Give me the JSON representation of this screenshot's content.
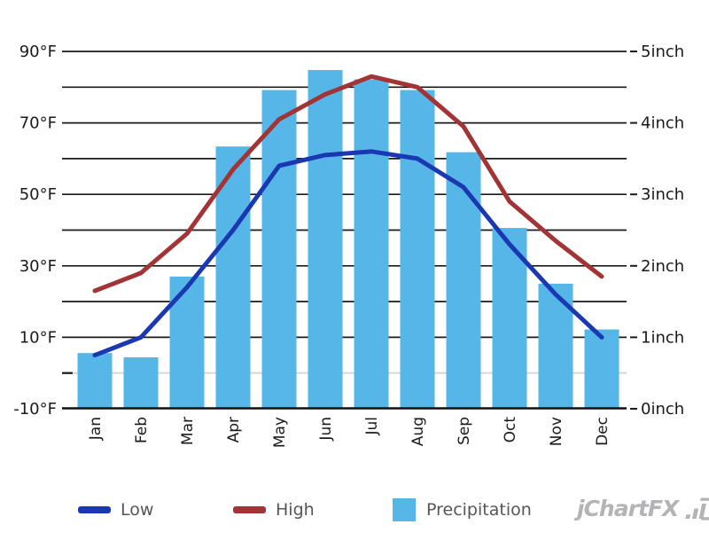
{
  "legend": {
    "low": "Low",
    "high": "High",
    "precipitation": "Precipitation"
  },
  "logo": {
    "text": "jChartFX"
  },
  "chart_data": {
    "type": "combo",
    "categories": [
      "Jan",
      "Feb",
      "Mar",
      "Apr",
      "May",
      "Jun",
      "Jul",
      "Aug",
      "Sep",
      "Oct",
      "Nov",
      "Dec"
    ],
    "series": [
      {
        "name": "Low",
        "type": "line",
        "unit": "°F",
        "color": "#1a38b2",
        "values": [
          5,
          10,
          24,
          40,
          58,
          61,
          62,
          60,
          52,
          36,
          22,
          10
        ]
      },
      {
        "name": "High",
        "type": "line",
        "unit": "°F",
        "color": "#a23435",
        "values": [
          23,
          28,
          39,
          57,
          71,
          78,
          83,
          80,
          69,
          48,
          37,
          27
        ]
      },
      {
        "name": "Precipitation",
        "type": "bar",
        "unit": "inch",
        "color": "#56b6e8",
        "values": [
          0.78,
          0.72,
          1.85,
          3.67,
          4.46,
          4.74,
          4.61,
          4.46,
          3.59,
          2.53,
          1.75,
          1.11
        ]
      }
    ],
    "left_axis": {
      "unit": "°F",
      "min": -10,
      "max": 90,
      "gridline_step": 10,
      "tick_values": [
        90,
        70,
        50,
        30,
        10,
        -10
      ],
      "tick_labels": [
        "90°F",
        "70°F",
        "50°F",
        "30°F",
        "10°F",
        "-10°F"
      ]
    },
    "right_axis": {
      "unit": "inch",
      "min": 0,
      "max": 5,
      "tick_values": [
        5,
        4,
        3,
        2,
        1,
        0
      ],
      "tick_labels": [
        "5inch",
        "4inch",
        "3inch",
        "2inch",
        "1inch",
        "0inch"
      ]
    },
    "x_axis": {
      "label_rotation_degrees": -90
    },
    "grid": {
      "on": true,
      "color": "#1a1a1a",
      "zero_line_color": "#d9d9d9",
      "axis_color": "#111111"
    },
    "legend_position": "bottom"
  }
}
